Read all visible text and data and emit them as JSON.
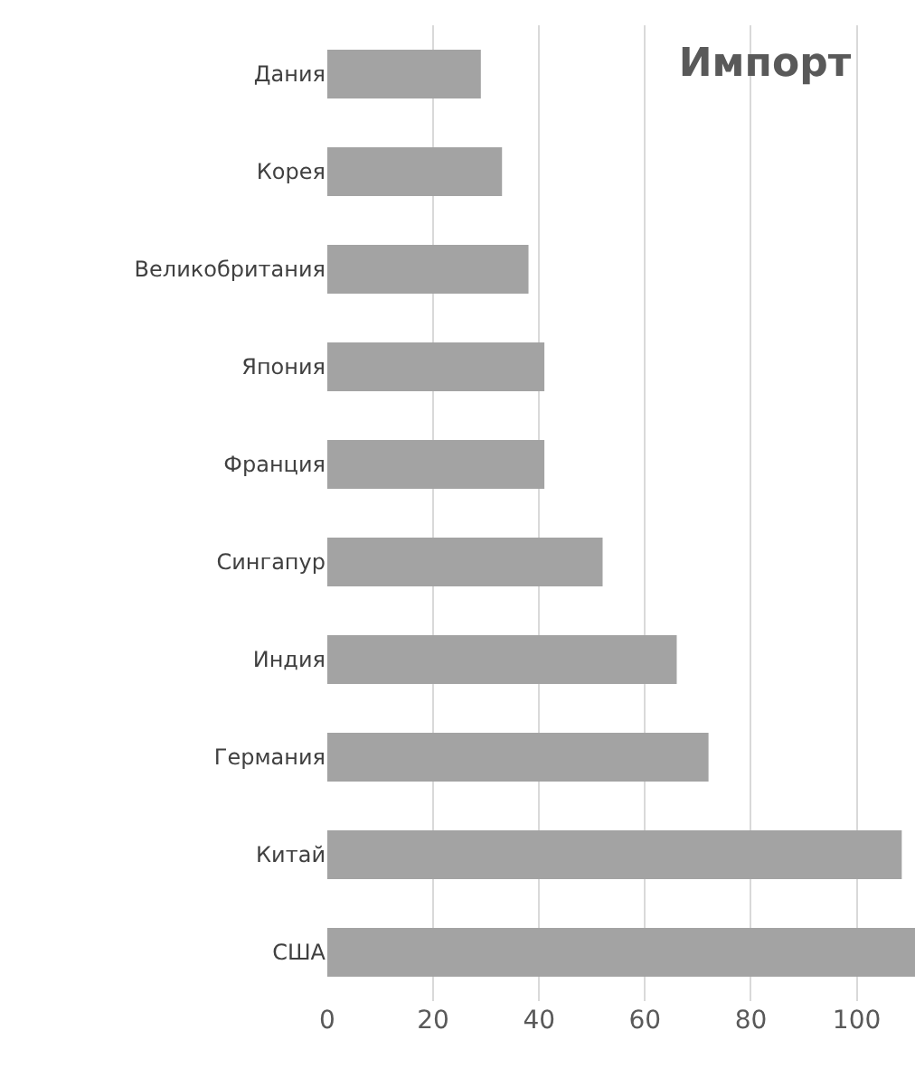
{
  "chart_data": {
    "type": "bar",
    "orientation": "horizontal",
    "title": "Импорт",
    "categories": [
      "Дания",
      "Корея",
      "Великобритания",
      "Япония",
      "Франция",
      "Сингапур",
      "Индия",
      "Германия",
      "Китай",
      "США"
    ],
    "values": [
      29,
      33,
      38,
      41,
      41,
      52,
      66,
      72,
      108.5,
      111
    ],
    "color": "#a3a3a3",
    "xlim": [
      0,
      111
    ],
    "xticks": [
      0,
      20,
      40,
      60,
      80,
      100
    ],
    "grid": "x"
  }
}
